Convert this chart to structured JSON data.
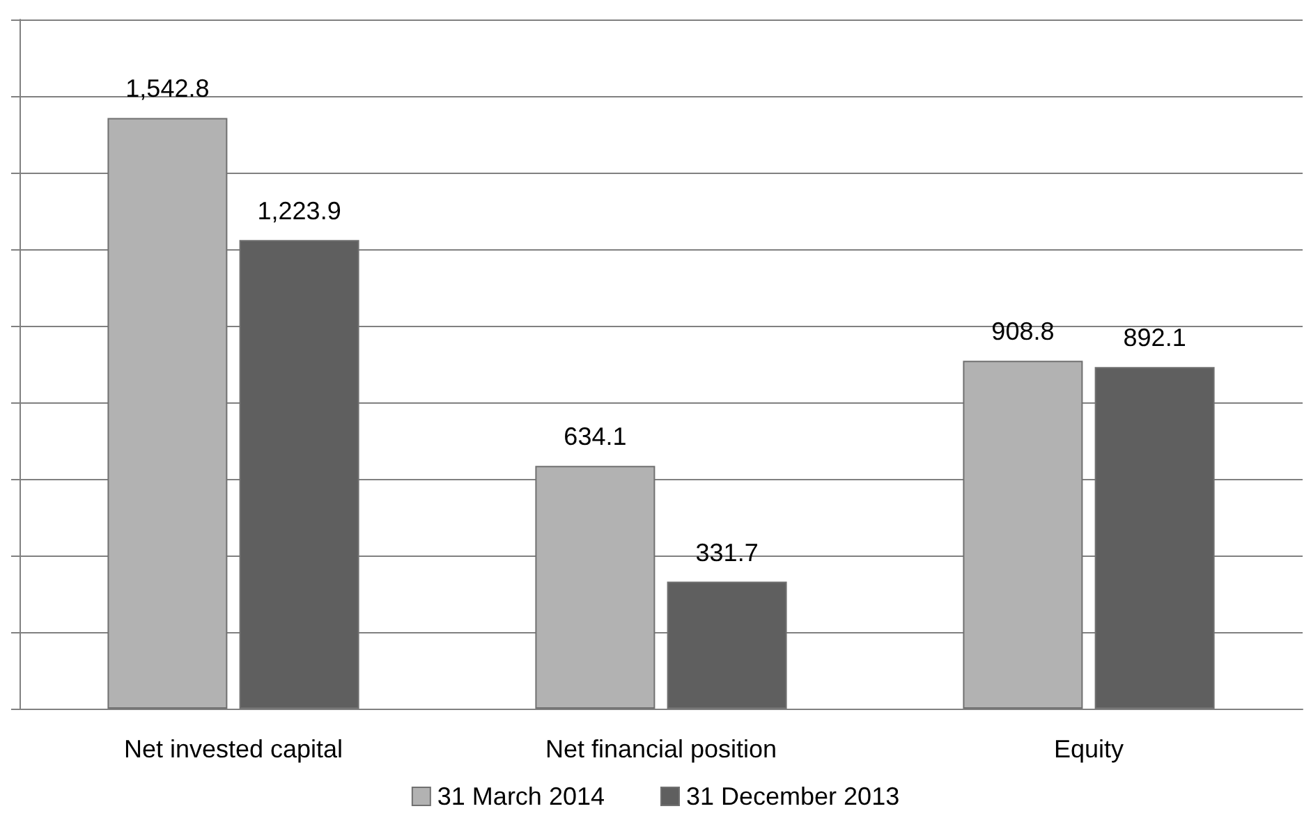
{
  "chart_data": {
    "type": "bar",
    "categories": [
      "Net invested capital",
      "Net financial position",
      "Equity"
    ],
    "series": [
      {
        "name": "31 March 2014",
        "color": "#b2b2b2",
        "values": [
          1542.8,
          634.1,
          908.8
        ],
        "value_labels": [
          "1,542.8",
          "634.1",
          "908.8"
        ]
      },
      {
        "name": "31 December 2013",
        "color": "#5f5f5f",
        "values": [
          1223.9,
          331.7,
          892.1
        ],
        "value_labels": [
          "1,223.9",
          "331.7",
          "892.1"
        ]
      }
    ],
    "ylim": [
      0,
      1800
    ],
    "yticks": [
      {
        "value": 0,
        "label": null
      },
      {
        "value": 200,
        "label": null
      },
      {
        "value": 400,
        "label": null
      },
      {
        "value": 600,
        "label": null
      },
      {
        "value": 800,
        "label": null
      },
      {
        "value": 1000,
        "label": null
      },
      {
        "value": 1200,
        "label": null
      },
      {
        "value": 1400,
        "label": null
      },
      {
        "value": 1600,
        "label": null
      },
      {
        "value": 1800,
        "label": null
      }
    ],
    "tick_labels": "x",
    "grid": "y",
    "legend": "bottom"
  }
}
